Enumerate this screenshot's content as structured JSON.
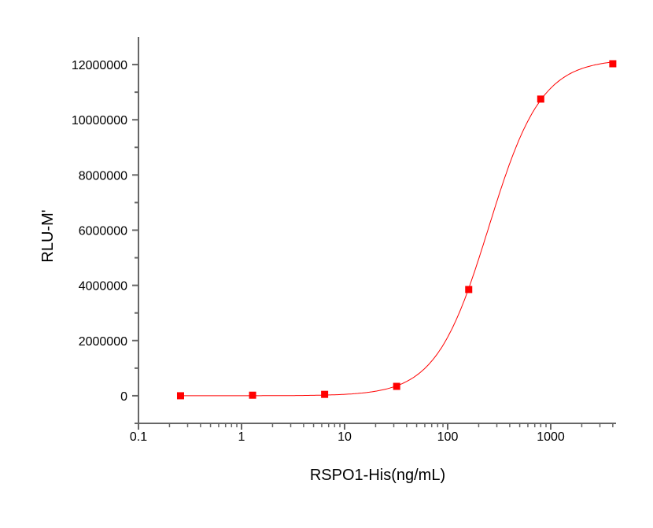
{
  "chart_data": {
    "type": "scatter",
    "title": "",
    "xlabel": "RSPO1-His(ng/mL)",
    "ylabel": "RLU-M'",
    "x_scale": "log",
    "xlim": [
      0.1,
      4300
    ],
    "ylim": [
      -1000000,
      13000000
    ],
    "x_ticks": [
      0.1,
      1,
      10,
      100,
      1000
    ],
    "x_tick_labels": [
      "0.1",
      "1",
      "10",
      "100",
      "1000"
    ],
    "y_ticks": [
      0,
      2000000,
      4000000,
      6000000,
      8000000,
      10000000,
      12000000
    ],
    "y_tick_labels": [
      "0",
      "2000000",
      "4000000",
      "6000000",
      "8000000",
      "10000000",
      "12000000"
    ],
    "grid": false,
    "fit_curve": "sigmoidal",
    "series": [
      {
        "x": [
          0.256,
          1.28,
          6.4,
          32,
          160,
          800,
          4000
        ],
        "y": [
          0,
          20000,
          50000,
          340000,
          3850000,
          10750000,
          12030000
        ],
        "color": "#ff0000",
        "marker": "square"
      }
    ],
    "axis_color": "#666666"
  }
}
